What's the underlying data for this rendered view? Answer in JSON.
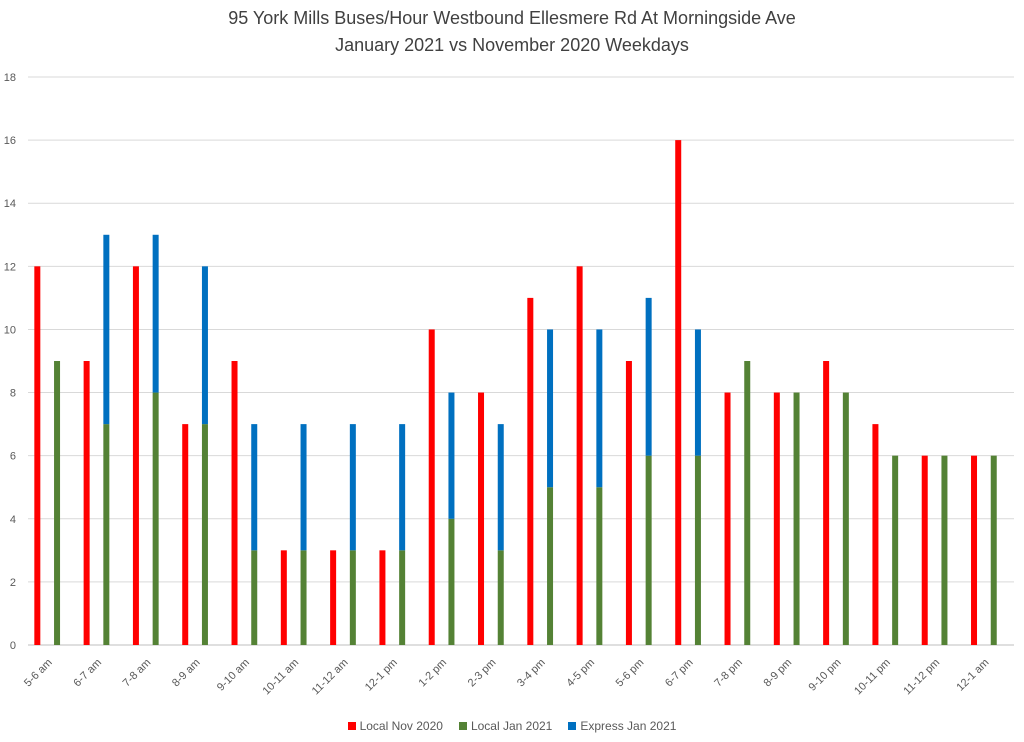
{
  "chart_data": {
    "type": "bar",
    "title": "95 York Mills Buses/Hour Westbound Ellesmere Rd At Morningside Ave",
    "subtitle": "January 2021 vs November 2020 Weekdays",
    "categories": [
      "5-6 am",
      "6-7 am",
      "7-8 am",
      "8-9 am",
      "9-10 am",
      "10-11 am",
      "11-12 am",
      "12-1 pm",
      "1-2 pm",
      "2-3 pm",
      "3-4 pm",
      "4-5 pm",
      "5-6 pm",
      "6-7 pm",
      "7-8 pm",
      "8-9 pm",
      "9-10 pm",
      "10-11 pm",
      "11-12 pm",
      "12-1 am"
    ],
    "series": [
      {
        "name": "Local Nov 2020",
        "color": "#ff0000",
        "values": [
          12,
          9,
          12,
          7,
          9,
          3,
          3,
          3,
          10,
          8,
          11,
          12,
          9,
          16,
          8,
          8,
          9,
          7,
          6,
          6
        ]
      },
      {
        "name": "Local Jan 2021",
        "color": "#548235",
        "values": [
          9,
          7,
          8,
          7,
          3,
          3,
          3,
          3,
          4,
          3,
          5,
          5,
          6,
          6,
          9,
          8,
          8,
          6,
          6,
          6
        ]
      },
      {
        "name": "Express Jan 2021",
        "color": "#0070c0",
        "values": [
          0,
          6,
          5,
          5,
          4,
          4,
          4,
          4,
          4,
          4,
          5,
          5,
          5,
          4,
          0,
          0,
          0,
          0,
          0,
          0
        ]
      }
    ],
    "stacked_groups": [
      [
        "Local Nov 2020"
      ],
      [
        "Local Jan 2021",
        "Express Jan 2021"
      ]
    ],
    "ylim": [
      0,
      18
    ],
    "yticks": [
      "0",
      "2",
      "4",
      "6",
      "8",
      "10",
      "12",
      "14",
      "16",
      "18"
    ],
    "grid": true,
    "legend_position": "bottom"
  }
}
